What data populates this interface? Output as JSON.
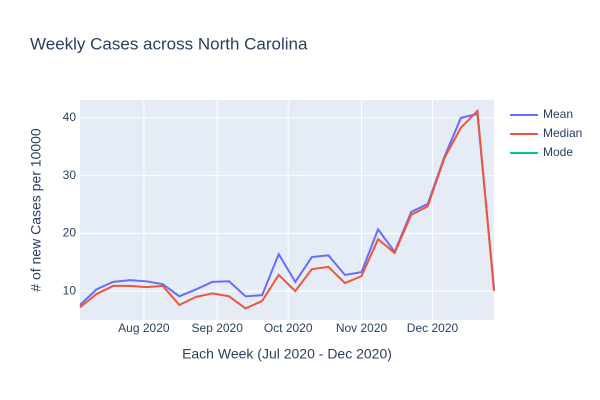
{
  "chart_data": {
    "type": "line",
    "title": "Weekly Cases across North Carolina",
    "xlabel": "Each Week (Jul 2020 - Dec 2020)",
    "ylabel": "# of new Cases per 10000",
    "x": [
      "2020-07-05",
      "2020-07-12",
      "2020-07-19",
      "2020-07-26",
      "2020-08-02",
      "2020-08-09",
      "2020-08-16",
      "2020-08-23",
      "2020-08-30",
      "2020-09-06",
      "2020-09-13",
      "2020-09-20",
      "2020-09-27",
      "2020-10-04",
      "2020-10-11",
      "2020-10-18",
      "2020-10-25",
      "2020-11-01",
      "2020-11-08",
      "2020-11-15",
      "2020-11-22",
      "2020-11-29",
      "2020-12-06",
      "2020-12-13",
      "2020-12-20",
      "2020-12-27"
    ],
    "series": [
      {
        "name": "Mean",
        "color": "#636efa",
        "values": [
          7.6,
          10.3,
          11.6,
          11.9,
          11.7,
          11.2,
          9.1,
          10.3,
          11.6,
          11.7,
          9.1,
          9.3,
          16.4,
          11.6,
          15.9,
          16.2,
          12.8,
          13.3,
          20.7,
          16.8,
          23.7,
          25.1,
          33.2,
          40.0,
          40.7,
          10.5
        ]
      },
      {
        "name": "Median",
        "color": "#ef553b",
        "values": [
          7.2,
          9.5,
          10.9,
          10.9,
          10.7,
          10.9,
          7.6,
          9.0,
          9.6,
          9.1,
          7.0,
          8.3,
          12.8,
          10.0,
          13.8,
          14.2,
          11.4,
          12.6,
          19.0,
          16.6,
          23.2,
          24.7,
          33.0,
          38.3,
          41.2,
          10.0
        ]
      },
      {
        "name": "Mode",
        "color": "#00cc96",
        "values": [
          null,
          null,
          null,
          null,
          null,
          null,
          null,
          null,
          null,
          null,
          null,
          null,
          null,
          null,
          null,
          null,
          null,
          null,
          null,
          null,
          null,
          null,
          null,
          null,
          null,
          null
        ]
      }
    ],
    "xlim": [
      "2020-07-05",
      "2020-12-27"
    ],
    "xticks": [
      {
        "value": "2020-08-01",
        "label": "Aug 2020"
      },
      {
        "value": "2020-09-01",
        "label": "Sep 2020"
      },
      {
        "value": "2020-10-01",
        "label": "Oct 2020"
      },
      {
        "value": "2020-11-01",
        "label": "Nov 2020"
      },
      {
        "value": "2020-12-01",
        "label": "Dec 2020"
      }
    ],
    "ylim": [
      5,
      43.1
    ],
    "yticks": [
      10,
      20,
      30,
      40
    ],
    "grid": true,
    "legend": "right"
  }
}
